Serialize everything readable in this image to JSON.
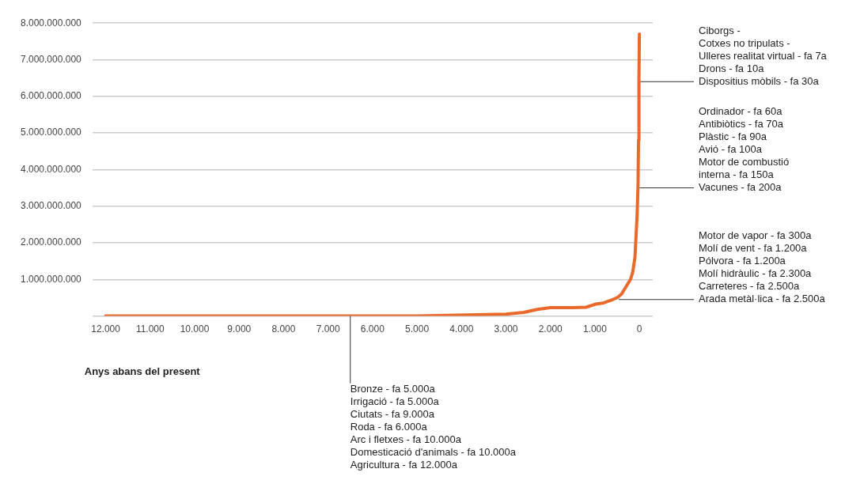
{
  "chart_data": {
    "type": "line",
    "xlabel": "Anys abans del present",
    "x": [
      12000,
      8000,
      5000,
      3000,
      2600,
      2300,
      2000,
      1500,
      1200,
      1000,
      800,
      600,
      500,
      400,
      300,
      200,
      150,
      100,
      70,
      50,
      30,
      20,
      10,
      0
    ],
    "series": [
      {
        "color": "#e8692a",
        "values": [
          0,
          0,
          0,
          50000000,
          100000000,
          180000000,
          230000000,
          230000000,
          240000000,
          320000000,
          360000000,
          450000000,
          500000000,
          600000000,
          800000000,
          1000000000,
          1200000000,
          1600000000,
          2300000000,
          2800000000,
          3600000000,
          4800000000,
          6500000000,
          7700000000
        ]
      }
    ],
    "xlim": [
      12300,
      -300
    ],
    "xticks": [
      {
        "value": 12000,
        "label": "12.000"
      },
      {
        "value": 11000,
        "label": "11.000"
      },
      {
        "value": 10000,
        "label": "10.000"
      },
      {
        "value": 9000,
        "label": "9.000"
      },
      {
        "value": 8000,
        "label": "8.000"
      },
      {
        "value": 7000,
        "label": "7.000"
      },
      {
        "value": 6000,
        "label": "6.000"
      },
      {
        "value": 5000,
        "label": "5.000"
      },
      {
        "value": 4000,
        "label": "4.000"
      },
      {
        "value": 3000,
        "label": "3.000"
      },
      {
        "value": 2000,
        "label": "2.000"
      },
      {
        "value": 1000,
        "label": "1.000"
      },
      0
    ],
    "ylim": [
      0,
      8000000000
    ],
    "yticks": [
      {
        "value": 0,
        "label": null
      },
      {
        "value": 1000000000,
        "label": "1.000.000.000"
      },
      {
        "value": 2000000000,
        "label": "2.000.000.000"
      },
      {
        "value": 3000000000,
        "label": "3.000.000.000"
      },
      {
        "value": 4000000000,
        "label": "4.000.000.000"
      },
      {
        "value": 5000000000,
        "label": "5.000.000.000"
      },
      {
        "value": 6000000000,
        "label": "6.000.000.000"
      },
      {
        "value": 7000000000,
        "label": "7.000.000.000"
      },
      {
        "value": 8000000000,
        "label": "8.000.000.000"
      }
    ],
    "grid": "y",
    "legend": false,
    "marker": "none",
    "line_style": "solid",
    "annotations": [
      {
        "text": "Ciborgs -\nCotxes no tripulats -\nUlleres realitat virtual - fa 7a\nDrons - fa 10a\nDispositius mòbils - fa 30a",
        "x": 10,
        "y": 6400000000
      },
      {
        "text": "Ordinador - fa 60a\nAntibiòtics - fa 70a\nPlàstic - fa 90a\nAvió - fa 100a\nMotor de combustió\ninterna - fa 150a\nVacunes - fa 200a",
        "x": 30,
        "y": 3500000000
      },
      {
        "text": "Motor de vapor - fa 300a\nMolí de vent - fa 1.200a\nPólvora - fa 1.200a\nMolí hidràulic - fa 2.300a\nCarreteres - fa 2.500a\nArada metàl·lica - fa 2.500a",
        "x": 500,
        "y": 450000000
      },
      {
        "text": "Bronze - fa 5.000a\nIrrigació - fa 5.000a\nCiutats - fa 9.000a\nRoda - fa 6.000a\nArc i fletxes - fa 10.000a\nDomesticació d'animals - fa 10.000a\nAgricultura - fa 12.000a",
        "x": 6500,
        "y": 0
      }
    ]
  }
}
